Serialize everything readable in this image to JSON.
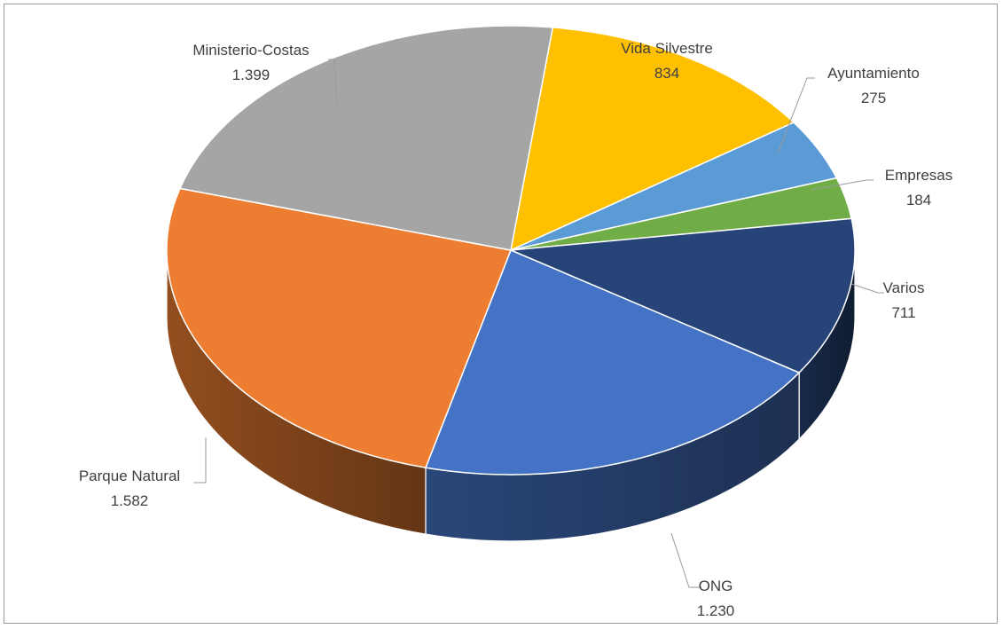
{
  "chart_data": {
    "type": "pie",
    "style": "3d",
    "categories": [
      "Vida Silvestre",
      "Ayuntamiento",
      "Empresas",
      "Varios",
      "ONG",
      "Parque Natural",
      "Ministerio-Costas"
    ],
    "values": [
      834,
      275,
      184,
      711,
      1230,
      1582,
      1399
    ],
    "value_labels": [
      "834",
      "275",
      "184",
      "711",
      "1.230",
      "1.582",
      "1.399"
    ],
    "colors": [
      "#FFC000",
      "#5B9BD5",
      "#70AD47",
      "#264478",
      "#4472C4",
      "#ED7D31",
      "#A5A5A5"
    ],
    "legend": "none"
  }
}
